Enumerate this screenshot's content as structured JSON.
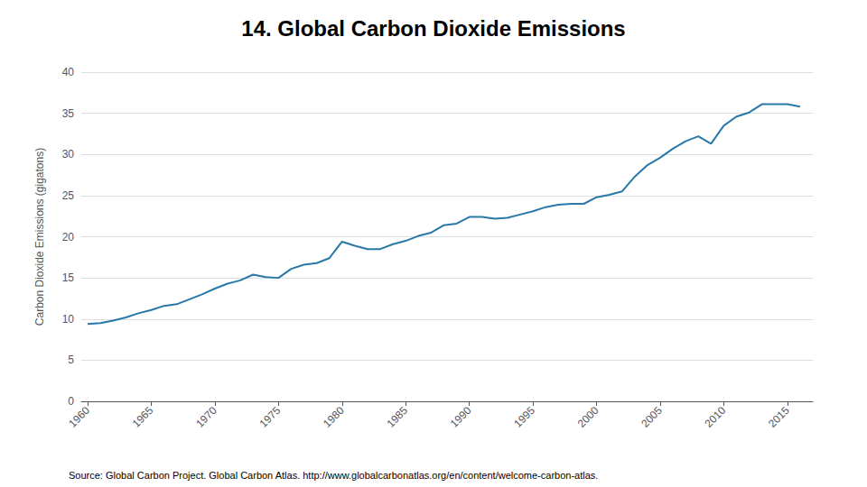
{
  "chart_data": {
    "type": "line",
    "title": "14. Global Carbon Dioxide Emissions",
    "ylabel": "Carbon Dioxide Emissions (gigatons)",
    "annotations": [
      "Source: Global Carbon Project. Global Carbon Atlas. http://www.globalcarbonatlas.org/en/content/welcome-carbon-atlas."
    ],
    "color": "#2878a8",
    "x": [
      1960,
      1961,
      1962,
      1963,
      1964,
      1965,
      1966,
      1967,
      1968,
      1969,
      1970,
      1971,
      1972,
      1973,
      1974,
      1975,
      1976,
      1977,
      1978,
      1979,
      1980,
      1981,
      1982,
      1983,
      1984,
      1985,
      1986,
      1987,
      1988,
      1989,
      1990,
      1991,
      1992,
      1993,
      1994,
      1995,
      1996,
      1997,
      1998,
      1999,
      2000,
      2001,
      2002,
      2003,
      2004,
      2005,
      2006,
      2007,
      2008,
      2009,
      2010,
      2011,
      2012,
      2013,
      2014,
      2015,
      2016
    ],
    "values": [
      9.4,
      9.5,
      9.8,
      10.2,
      10.7,
      11.1,
      11.6,
      11.8,
      12.4,
      13.0,
      13.7,
      14.3,
      14.7,
      15.4,
      15.1,
      15.0,
      16.1,
      16.6,
      16.8,
      17.4,
      19.4,
      18.9,
      18.5,
      18.5,
      19.1,
      19.5,
      20.1,
      20.5,
      21.4,
      21.6,
      22.4,
      22.4,
      22.2,
      22.3,
      22.7,
      23.1,
      23.6,
      23.9,
      24.0,
      24.0,
      24.8,
      25.1,
      25.5,
      27.3,
      28.7,
      29.6,
      30.7,
      31.6,
      32.2,
      31.3,
      33.5,
      34.6,
      35.1,
      36.1,
      36.1,
      36.1,
      35.8
    ],
    "xlim": [
      1959.5,
      2017
    ],
    "xticks": [
      1960,
      1965,
      1970,
      1975,
      1980,
      1985,
      1990,
      1995,
      2000,
      2005,
      2010,
      2015
    ],
    "ylim": [
      0,
      40
    ],
    "yticks": [
      0,
      5,
      10,
      15,
      20,
      25,
      30,
      35,
      40
    ],
    "grid": true
  }
}
